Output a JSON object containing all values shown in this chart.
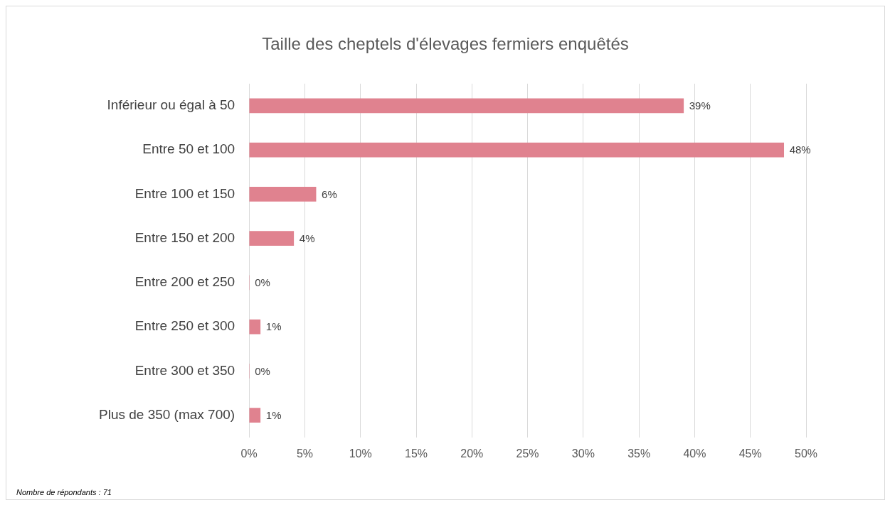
{
  "chart_data": {
    "type": "bar",
    "orientation": "horizontal",
    "title": "Taille des cheptels d'élevages fermiers enquêtés",
    "categories": [
      "Inférieur ou égal à 50",
      "Entre 50 et 100",
      "Entre 100 et 150",
      "Entre 150 et 200",
      "Entre 200 et 250",
      "Entre 250 et 300",
      "Entre 300 et 350",
      "Plus de 350 (max 700)"
    ],
    "values": [
      39,
      48,
      6,
      4,
      0,
      1,
      0,
      1
    ],
    "value_labels": [
      "39%",
      "48%",
      "6%",
      "4%",
      "0%",
      "1%",
      "0%",
      "1%"
    ],
    "color": "#e0828f",
    "xlim": [
      0,
      50
    ],
    "xticks": [
      {
        "value": 0,
        "label": "0%"
      },
      {
        "value": 5,
        "label": "5%"
      },
      {
        "value": 10,
        "label": "10%"
      },
      {
        "value": 15,
        "label": "15%"
      },
      {
        "value": 20,
        "label": "20%"
      },
      {
        "value": 25,
        "label": "25%"
      },
      {
        "value": 30,
        "label": "30%"
      },
      {
        "value": 35,
        "label": "35%"
      },
      {
        "value": 40,
        "label": "40%"
      },
      {
        "value": 45,
        "label": "45%"
      },
      {
        "value": 50,
        "label": "50%"
      }
    ],
    "grid": "x",
    "annotations": [
      "Nombre de répondants : 71"
    ]
  }
}
